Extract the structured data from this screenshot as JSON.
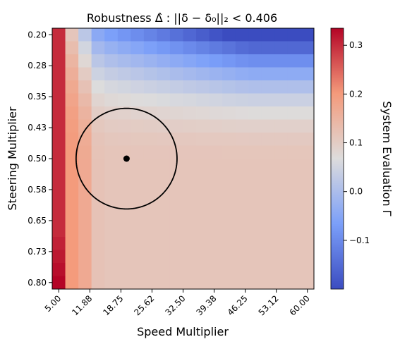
{
  "chart_data": {
    "type": "heatmap",
    "title": "Robustness Δ̂ : ||δ − δ₀||₂ < 0.406",
    "xlabel": "Speed Multiplier",
    "ylabel": "Steering Multiplier",
    "colorbar_label": "System Evaluation Γ",
    "colormap": "coolwarm",
    "x_range": [
      5.0,
      60.0
    ],
    "y_range": [
      0.2,
      0.8
    ],
    "grid_cols": 20,
    "grid_rows": 20,
    "x_ticks": [
      "5.00",
      "11.88",
      "18.75",
      "25.62",
      "32.50",
      "39.38",
      "46.25",
      "53.12",
      "60.00"
    ],
    "y_ticks": [
      "0.20",
      "0.28",
      "0.35",
      "0.43",
      "0.50",
      "0.58",
      "0.65",
      "0.73",
      "0.80"
    ],
    "colorbar_ticks": [
      "0.3",
      "0.2",
      "0.1",
      "0.0",
      "−0.1"
    ],
    "colorbar_tick_values": [
      0.3,
      0.2,
      0.1,
      0.0,
      -0.1
    ],
    "value_range": [
      -0.2,
      0.335
    ],
    "value_model": {
      "description": "cell value ≈ base(speed column) + penalty(top steering rows)",
      "column_base": [
        0.3,
        0.2,
        0.17,
        0.12,
        0.115,
        0.115,
        0.115,
        0.115,
        0.115,
        0.115,
        0.115,
        0.115,
        0.115,
        0.115,
        0.115,
        0.115,
        0.115,
        0.115,
        0.115,
        0.115
      ],
      "first_column_bottom_peak": 0.335
    },
    "nominal_point": {
      "speed": 20.0,
      "steering": 0.5
    },
    "robustness_radius": 0.406
  }
}
